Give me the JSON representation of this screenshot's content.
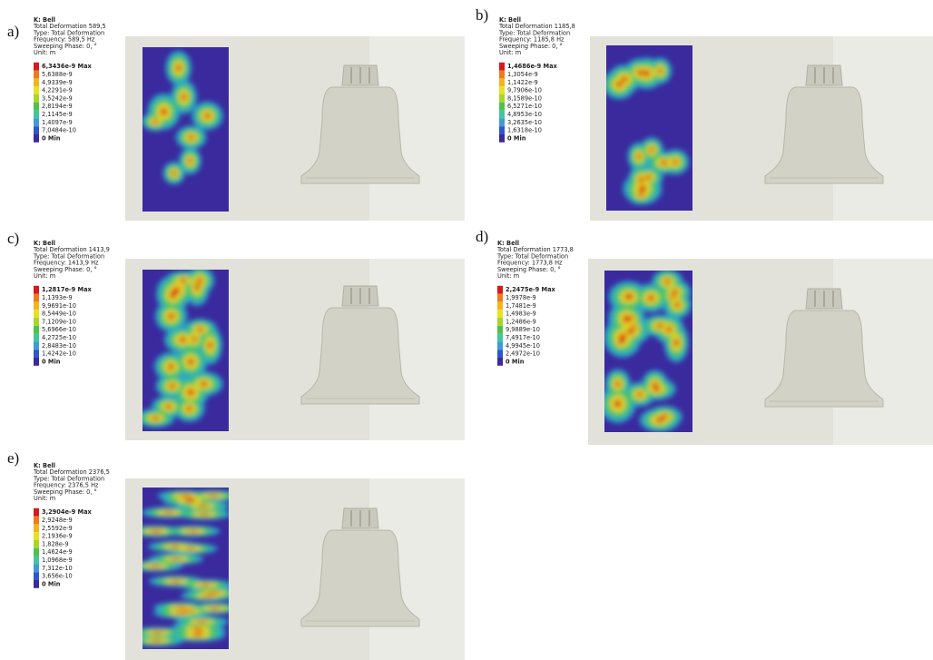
{
  "panels": [
    {
      "letter": "a)",
      "header": [
        "K: Bell",
        "Total Deformation 589,5",
        "Type: Total Deformation",
        "Frequency: 589,5 Hz",
        "Sweeping Phase: 0, °",
        "Unit: m"
      ],
      "legend": [
        "6,3436e-9 Max",
        "5,6388e-9",
        "4,9339e-9",
        "4,2291e-9",
        "3,5242e-9",
        "2,8194e-9",
        "2,1145e-9",
        "1,4097e-9",
        "7,0484e-10",
        "0 Min"
      ]
    },
    {
      "letter": "b)",
      "header": [
        "K: Bell",
        "Total Deformation 1185,8",
        "Type: Total Deformation",
        "Frequency: 1185,8 Hz",
        "Sweeping Phase: 0, °",
        "Unit: m"
      ],
      "legend": [
        "1,4686e-9 Max",
        "1,3054e-9",
        "1,1422e-9",
        "9,7906e-10",
        "8,1589e-10",
        "6,5271e-10",
        "4,8953e-10",
        "3,2635e-10",
        "1,6318e-10",
        "0 Min"
      ]
    },
    {
      "letter": "c)",
      "header": [
        "K: Bell",
        "Total Deformation 1413,9",
        "Type: Total Deformation",
        "Frequency: 1413,9 Hz",
        "Sweeping Phase: 0, °",
        "Unit: m"
      ],
      "legend": [
        "1,2817e-9 Max",
        "1,1393e-9",
        "9,9691e-10",
        "8,5449e-10",
        "7,1209e-10",
        "5,6966e-10",
        "4,2725e-10",
        "2,8483e-10",
        "1,4242e-10",
        "0 Min"
      ]
    },
    {
      "letter": "d)",
      "header": [
        "K: Bell",
        "Total Deformation 1773,8",
        "Type: Total Deformation",
        "Frequency: 1773,8 Hz",
        "Sweeping Phase: 0, °",
        "Unit: m"
      ],
      "legend": [
        "2,2475e-9 Max",
        "1,9978e-9",
        "1,7481e-9",
        "1,4983e-9",
        "1,2486e-9",
        "9,9889e-10",
        "7,4917e-10",
        "4,9945e-10",
        "2,4972e-10",
        "0 Min"
      ]
    },
    {
      "letter": "e)",
      "header": [
        "K: Bell",
        "Total Deformation 2376,5",
        "Type: Total Deformation",
        "Frequency: 2376,5 Hz",
        "Sweeping Phase: 0, °",
        "Unit: m"
      ],
      "legend": [
        "3,2904e-9 Max",
        "2,9248e-9",
        "2,5592e-9",
        "2,1936e-9",
        "1,828e-9",
        "1,4624e-9",
        "1,0968e-9",
        "7,312e-10",
        "3,656e-10",
        "0 Min"
      ]
    }
  ]
}
